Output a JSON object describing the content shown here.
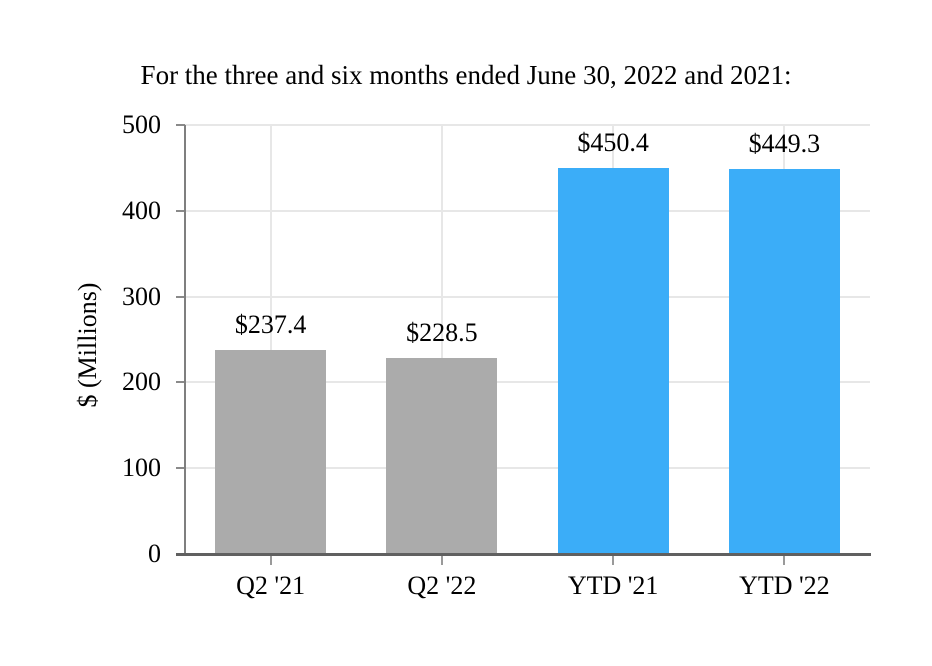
{
  "chart_data": {
    "type": "bar",
    "title": "For the three and six months ended June 30, 2022 and 2021:",
    "ylabel": "$ (Millions)",
    "xlabel": "",
    "categories": [
      "Q2 '21",
      "Q2 '22",
      "YTD '21",
      "YTD '22"
    ],
    "values": [
      237.4,
      228.5,
      450.4,
      449.3
    ],
    "bar_labels": [
      "$237.4",
      "$228.5",
      "$450.4",
      "$449.3"
    ],
    "bar_colors": [
      "#ABABAB",
      "#ABABAB",
      "#3BADF8",
      "#3BADF8"
    ],
    "yticks": [
      0,
      100,
      200,
      300,
      400,
      500
    ],
    "ylim": [
      0,
      500
    ],
    "grid": "both",
    "legend": "none",
    "colors": {
      "gray_bar": "#ABABAB",
      "blue_bar": "#3BADF8",
      "gridline": "#e7e7e7",
      "axis": "#606060"
    }
  }
}
